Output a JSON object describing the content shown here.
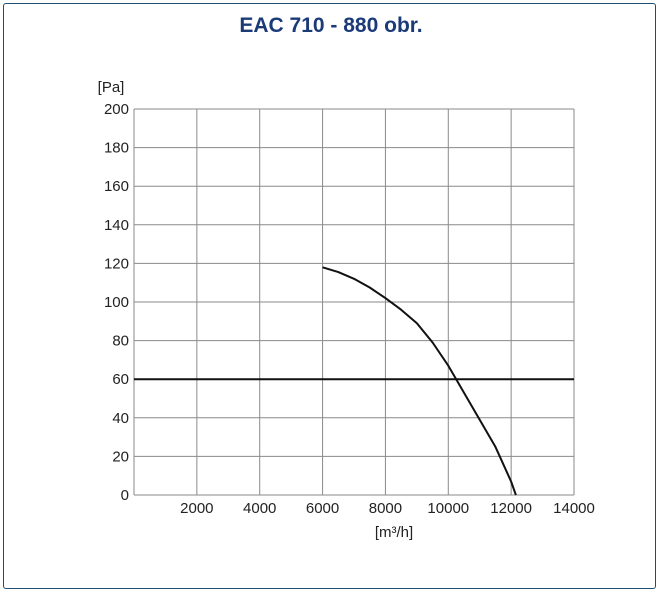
{
  "chart_data": {
    "type": "line",
    "title": "EAC 710 - 880 obr.",
    "ylabel": "[Pa]",
    "xlabel": "[m³/h]",
    "xlim": [
      0,
      14000
    ],
    "ylim": [
      0,
      200
    ],
    "x_ticks": [
      2000,
      4000,
      6000,
      8000,
      10000,
      12000,
      14000
    ],
    "y_ticks": [
      0,
      20,
      40,
      60,
      80,
      100,
      120,
      140,
      160,
      180,
      200
    ],
    "grid": true,
    "reference_line": {
      "y": 60
    },
    "series": [
      {
        "x": [
          6000,
          6500,
          7000,
          7500,
          8000,
          8500,
          9000,
          9500,
          10000,
          10500,
          11000,
          11500,
          12000,
          12150
        ],
        "y": [
          118,
          115.5,
          112,
          107.5,
          102,
          96,
          89,
          79,
          67,
          53,
          39,
          25,
          7,
          0
        ]
      }
    ]
  },
  "colors": {
    "title": "#1b3a78",
    "frame": "#1e4f72",
    "grid": "#8a8a8a",
    "curve": "#111111"
  }
}
